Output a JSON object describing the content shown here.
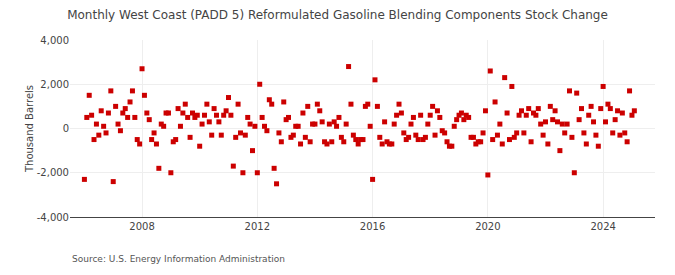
{
  "chart_data": {
    "type": "scatter",
    "title": "Monthly West Coast (PADD 5) Reformulated Gasoline Blending Components Stock Change",
    "ylabel": "Thousand Barrels",
    "source": "Source: U.S. Energy Information Administration",
    "marker": "square",
    "color": "#cc0000",
    "grid": true,
    "xlim": [
      2005.5,
      2025.8
    ],
    "xticks": [
      2008,
      2012,
      2016,
      2020,
      2024
    ],
    "ylim": [
      -4000,
      4000
    ],
    "yticks": [
      {
        "value": -4000,
        "label": "-4,000"
      },
      {
        "value": -2000,
        "label": "-2,000"
      },
      0,
      {
        "value": 2000,
        "label": "2,000"
      },
      {
        "value": 4000,
        "label": "4,000"
      }
    ],
    "x": [
      2006.0,
      2006.083,
      2006.167,
      2006.25,
      2006.333,
      2006.417,
      2006.5,
      2006.583,
      2006.667,
      2006.75,
      2006.833,
      2006.917,
      2007.0,
      2007.083,
      2007.167,
      2007.25,
      2007.333,
      2007.417,
      2007.5,
      2007.583,
      2007.667,
      2007.75,
      2007.833,
      2007.917,
      2008.0,
      2008.083,
      2008.167,
      2008.25,
      2008.333,
      2008.417,
      2008.5,
      2008.583,
      2008.667,
      2008.75,
      2008.833,
      2008.917,
      2009.0,
      2009.083,
      2009.167,
      2009.25,
      2009.333,
      2009.417,
      2009.5,
      2009.583,
      2009.667,
      2009.75,
      2009.833,
      2009.917,
      2010.0,
      2010.083,
      2010.167,
      2010.25,
      2010.333,
      2010.417,
      2010.5,
      2010.583,
      2010.667,
      2010.75,
      2010.833,
      2010.917,
      2011.0,
      2011.083,
      2011.167,
      2011.25,
      2011.333,
      2011.417,
      2011.5,
      2011.583,
      2011.667,
      2011.75,
      2011.833,
      2011.917,
      2012.0,
      2012.083,
      2012.167,
      2012.25,
      2012.333,
      2012.417,
      2012.5,
      2012.583,
      2012.667,
      2012.75,
      2012.833,
      2012.917,
      2013.0,
      2013.083,
      2013.167,
      2013.25,
      2013.333,
      2013.417,
      2013.5,
      2013.583,
      2013.667,
      2013.75,
      2013.833,
      2013.917,
      2014.0,
      2014.083,
      2014.167,
      2014.25,
      2014.333,
      2014.417,
      2014.5,
      2014.583,
      2014.667,
      2014.75,
      2014.833,
      2014.917,
      2015.0,
      2015.083,
      2015.167,
      2015.25,
      2015.333,
      2015.417,
      2015.5,
      2015.583,
      2015.667,
      2015.75,
      2015.833,
      2015.917,
      2016.0,
      2016.083,
      2016.167,
      2016.25,
      2016.333,
      2016.417,
      2016.5,
      2016.583,
      2016.667,
      2016.75,
      2016.833,
      2016.917,
      2017.0,
      2017.083,
      2017.167,
      2017.25,
      2017.333,
      2017.417,
      2017.5,
      2017.583,
      2017.667,
      2017.75,
      2017.833,
      2017.917,
      2018.0,
      2018.083,
      2018.167,
      2018.25,
      2018.333,
      2018.417,
      2018.5,
      2018.583,
      2018.667,
      2018.75,
      2018.833,
      2018.917,
      2019.0,
      2019.083,
      2019.167,
      2019.25,
      2019.333,
      2019.417,
      2019.5,
      2019.583,
      2019.667,
      2019.75,
      2019.833,
      2019.917,
      2020.0,
      2020.083,
      2020.167,
      2020.25,
      2020.333,
      2020.417,
      2020.5,
      2020.583,
      2020.667,
      2020.75,
      2020.833,
      2020.917,
      2021.0,
      2021.083,
      2021.167,
      2021.25,
      2021.333,
      2021.417,
      2021.5,
      2021.583,
      2021.667,
      2021.75,
      2021.833,
      2021.917,
      2022.0,
      2022.083,
      2022.167,
      2022.25,
      2022.333,
      2022.417,
      2022.5,
      2022.583,
      2022.667,
      2022.75,
      2022.833,
      2022.917,
      2023.0,
      2023.083,
      2023.167,
      2023.25,
      2023.333,
      2023.417,
      2023.5,
      2023.583,
      2023.667,
      2023.75,
      2023.833,
      2023.917,
      2024.0,
      2024.083,
      2024.167,
      2024.25,
      2024.333,
      2024.417,
      2024.5,
      2024.583,
      2024.667,
      2024.75,
      2024.833,
      2024.917,
      2025.0,
      2025.083
    ],
    "values": [
      -2300,
      500,
      1500,
      600,
      -500,
      200,
      -300,
      800,
      100,
      -200,
      700,
      1700,
      -2400,
      1000,
      200,
      -100,
      700,
      900,
      500,
      1200,
      1700,
      500,
      -500,
      -700,
      2700,
      1500,
      700,
      400,
      -500,
      -200,
      -700,
      -1800,
      200,
      100,
      700,
      700,
      -2000,
      -600,
      -500,
      900,
      100,
      700,
      1100,
      500,
      -400,
      700,
      500,
      600,
      -800,
      200,
      600,
      1100,
      300,
      -300,
      900,
      600,
      300,
      -300,
      600,
      800,
      1400,
      600,
      -1700,
      -400,
      1100,
      -200,
      -2000,
      -300,
      500,
      200,
      -1000,
      100,
      -2000,
      2000,
      500,
      100,
      -100,
      1300,
      1100,
      -1800,
      -2500,
      -200,
      -600,
      1200,
      400,
      500,
      -400,
      -300,
      100,
      100,
      -700,
      700,
      -400,
      1000,
      -600,
      200,
      200,
      1100,
      800,
      300,
      -600,
      -700,
      200,
      -600,
      300,
      100,
      500,
      -400,
      -600,
      200,
      2800,
      1100,
      -300,
      -500,
      -700,
      -500,
      -500,
      1000,
      1100,
      100,
      -2300,
      2200,
      1000,
      -400,
      -700,
      300,
      -600,
      -700,
      -700,
      200,
      600,
      1100,
      700,
      -200,
      -500,
      -400,
      200,
      500,
      -300,
      -500,
      600,
      -500,
      -400,
      200,
      600,
      1000,
      -300,
      800,
      500,
      -100,
      -200,
      -600,
      -800,
      -800,
      100,
      400,
      600,
      700,
      400,
      600,
      500,
      -400,
      -400,
      -700,
      -600,
      -600,
      -200,
      800,
      -2100,
      2600,
      -500,
      1200,
      -300,
      200,
      -700,
      2300,
      700,
      -500,
      1900,
      -400,
      -200,
      600,
      800,
      -200,
      600,
      900,
      -600,
      700,
      600,
      900,
      200,
      -300,
      300,
      -700,
      1000,
      400,
      800,
      300,
      -1000,
      200,
      -200,
      200,
      1700,
      -400,
      -2000,
      1600,
      400,
      900,
      -200,
      -700,
      600,
      1000,
      300,
      -300,
      -800,
      900,
      1900,
      300,
      1100,
      900,
      -200,
      400,
      800,
      -300,
      700,
      -200,
      -600,
      1700,
      600,
      800
    ]
  }
}
